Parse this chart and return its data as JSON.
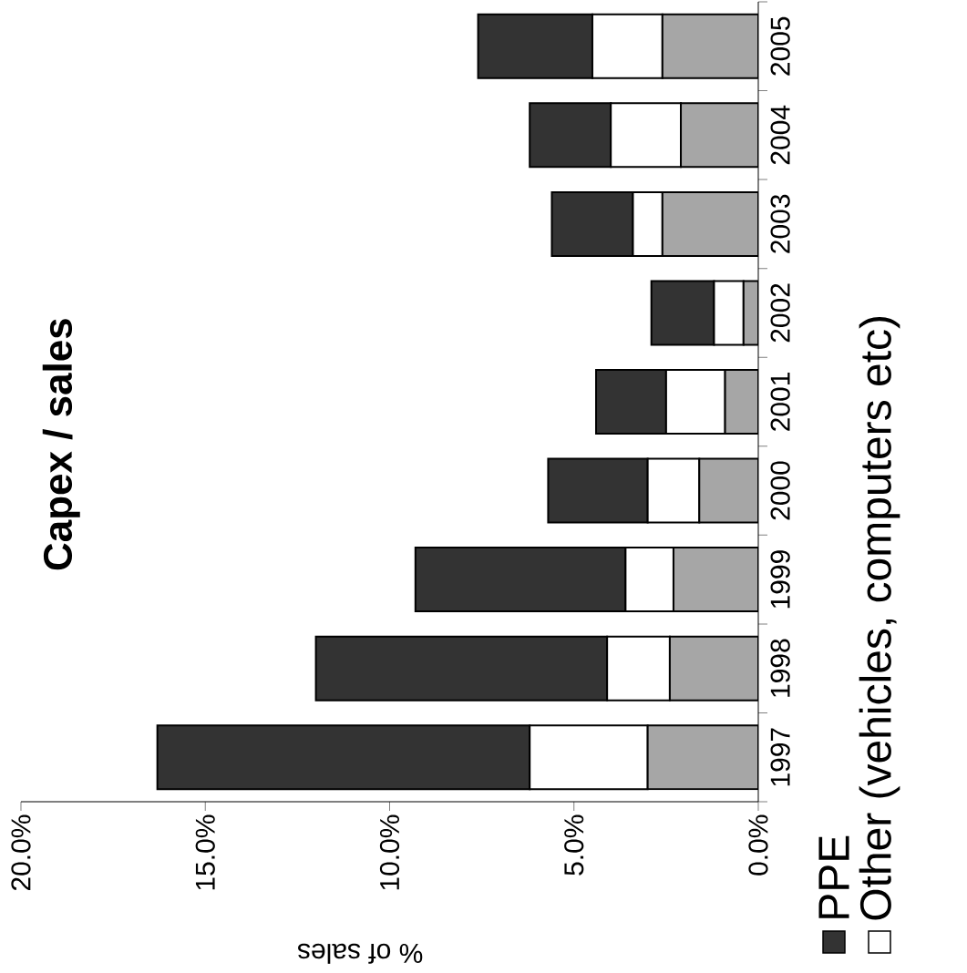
{
  "chart_data": {
    "type": "bar",
    "stacked": true,
    "orientation": "horizontal",
    "title": "Capex / sales",
    "xlabel": "% of sales",
    "categories": [
      "2005",
      "2004",
      "2003",
      "2002",
      "2001",
      "2000",
      "1999",
      "1998",
      "1997"
    ],
    "series": [
      {
        "color": "#a6a6a6",
        "values": [
          2.6,
          2.1,
          2.6,
          0.4,
          0.9,
          1.6,
          2.3,
          2.4,
          3.0
        ]
      },
      {
        "name": "Other (vehicles, computers etc)",
        "color": "#ffffff",
        "values": [
          1.9,
          1.9,
          0.8,
          0.8,
          1.6,
          1.4,
          1.3,
          1.7,
          3.2
        ]
      },
      {
        "name": "PPE",
        "color": "#333333",
        "values": [
          3.1,
          2.2,
          2.2,
          1.7,
          1.9,
          2.7,
          5.7,
          7.9,
          10.1
        ]
      }
    ],
    "xlim": [
      20,
      0
    ],
    "xticks": [
      {
        "value": 20,
        "label": "20.0%"
      },
      {
        "value": 15,
        "label": "15.0%"
      },
      {
        "value": 10,
        "label": "10.0%"
      },
      {
        "value": 5,
        "label": "5.0%"
      },
      {
        "value": 0,
        "label": "0.0%"
      }
    ],
    "legend": "right",
    "grid": false
  }
}
